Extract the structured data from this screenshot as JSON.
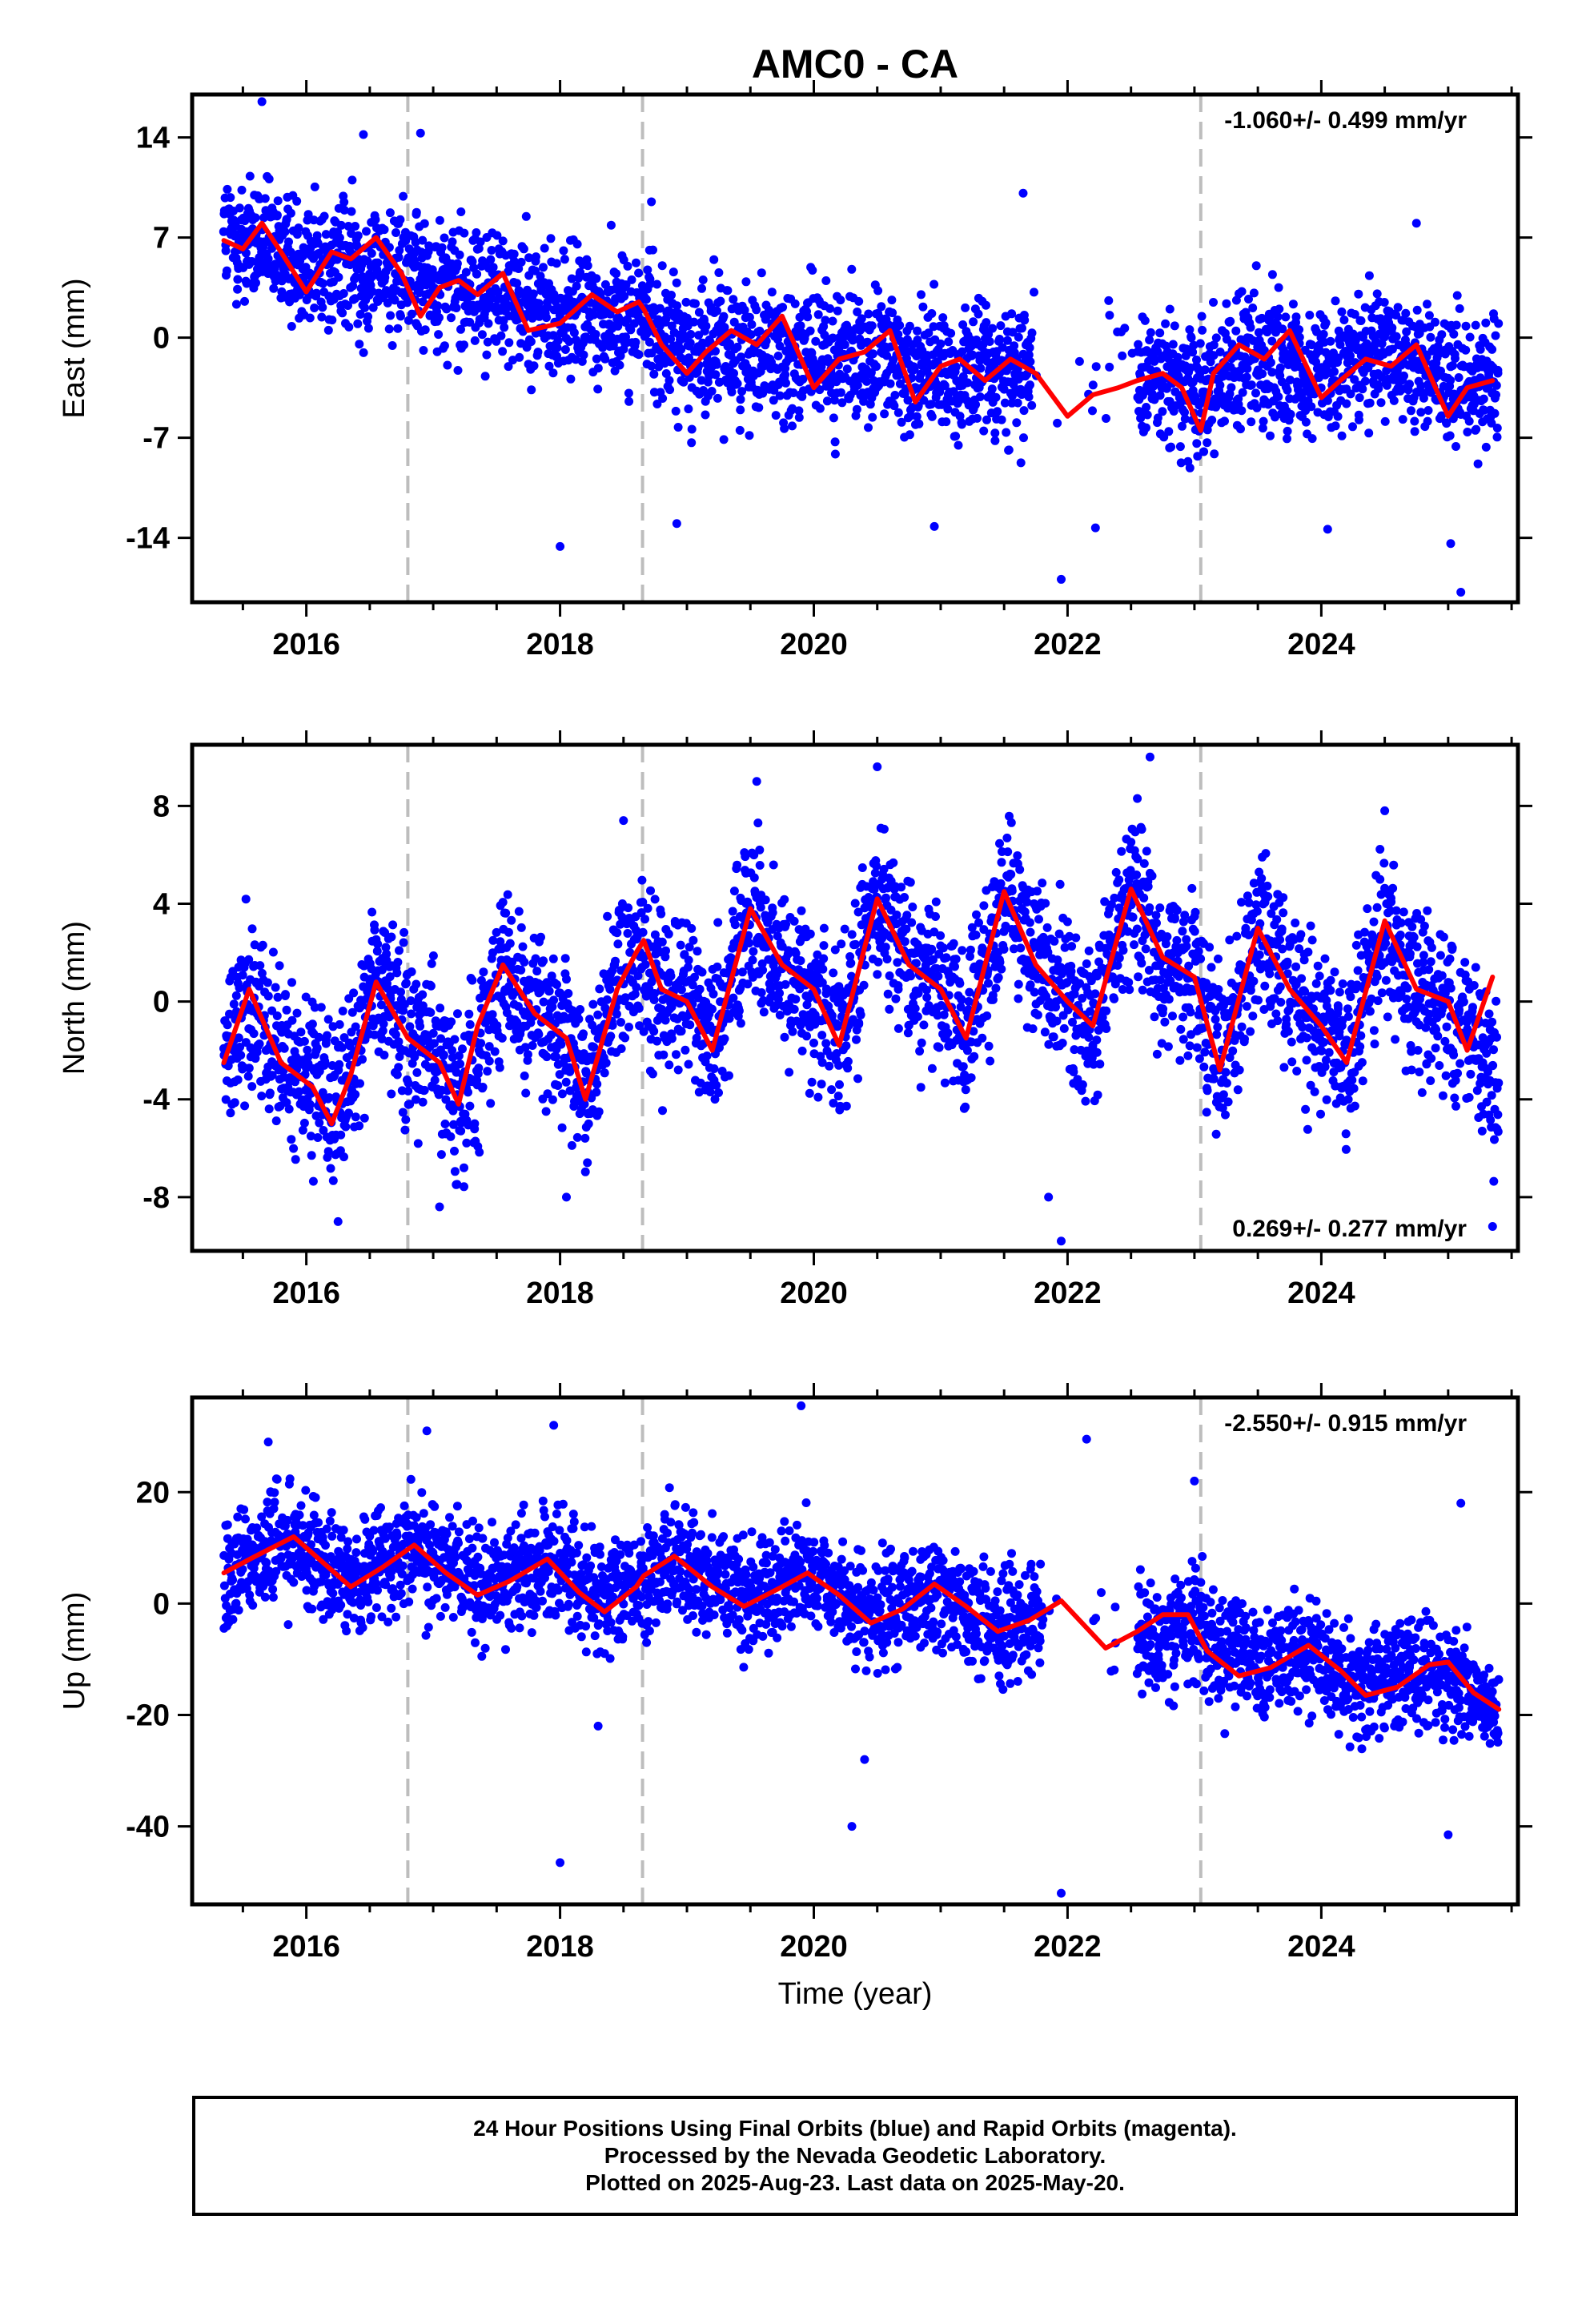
{
  "title": "AMC0 - CA",
  "colors": {
    "points": "#0000ff",
    "fit": "#ff0000",
    "events": "#bdbdbd",
    "axis": "#000000"
  },
  "footer": {
    "line1": "24 Hour Positions Using Final Orbits (blue) and Rapid Orbits (magenta).",
    "line2": "Processed by the Nevada Geodetic Laboratory.",
    "line3": "Plotted on 2025-Aug-23. Last data on 2025-May-20."
  },
  "chart_data": [
    {
      "type": "scatter",
      "name": "east",
      "title": "AMC0 - CA",
      "xlabel": "",
      "ylabel": "East (mm)",
      "xlim": [
        2015.1,
        2025.55
      ],
      "ylim": [
        -18.5,
        17
      ],
      "yticks": [
        14,
        7,
        0,
        -7,
        -14
      ],
      "ytick_labels": [
        "14",
        "7",
        "0",
        "-7",
        "-14"
      ],
      "xticks": [
        2016,
        2018,
        2020,
        2022,
        2024
      ],
      "xtick_labels": [
        "2016",
        "2018",
        "2020",
        "2022",
        "2024"
      ],
      "event_lines": [
        2016.8,
        2018.65,
        2023.05
      ],
      "rate_label": "-1.060+/- 0.499 mm/yr",
      "rate_position": "top-right",
      "fit": {
        "x": [
          2015.35,
          2015.5,
          2015.65,
          2015.8,
          2016.0,
          2016.2,
          2016.35,
          2016.55,
          2016.75,
          2016.9,
          2017.05,
          2017.2,
          2017.35,
          2017.55,
          2017.75,
          2018.0,
          2018.25,
          2018.45,
          2018.62,
          2018.66,
          2018.8,
          2019.0,
          2019.15,
          2019.35,
          2019.55,
          2019.75,
          2020.0,
          2020.2,
          2020.4,
          2020.6,
          2020.8,
          2021.0,
          2021.15,
          2021.35,
          2021.55,
          2021.75,
          2022.0,
          2022.2,
          2022.4,
          2022.55,
          2022.75,
          2022.9,
          2023.05,
          2023.15,
          2023.35,
          2023.55,
          2023.75,
          2024.0,
          2024.15,
          2024.35,
          2024.55,
          2024.75,
          2025.0,
          2025.15,
          2025.35
        ],
        "y": [
          6.8,
          6.2,
          8.0,
          6.0,
          3.2,
          6.0,
          5.5,
          7.0,
          4.5,
          1.5,
          3.5,
          4.0,
          3.0,
          4.5,
          0.5,
          1.0,
          3.0,
          1.8,
          2.5,
          2.0,
          -0.5,
          -2.5,
          -1.0,
          0.5,
          -0.5,
          1.5,
          -3.5,
          -1.5,
          -1.0,
          0.5,
          -4.5,
          -2.0,
          -1.5,
          -3.0,
          -1.5,
          -2.5,
          -5.5,
          -4.0,
          -3.5,
          -3.0,
          -2.5,
          -3.5,
          -6.5,
          -2.5,
          -0.5,
          -1.5,
          0.5,
          -4.2,
          -3.0,
          -1.5,
          -2.0,
          -0.5,
          -5.5,
          -3.5,
          -3.0
        ]
      },
      "scatter": {
        "trend": {
          "x": [
            2015.35,
            2016.0,
            2016.8,
            2017.5,
            2018.0,
            2018.65,
            2019.0,
            2019.5,
            2020.0,
            2020.5,
            2021.0,
            2021.5,
            2022.0,
            2022.5,
            2023.0,
            2023.05,
            2023.5,
            2024.0,
            2024.5,
            2025.0,
            2025.4
          ],
          "y": [
            7.0,
            5.5,
            4.5,
            3.0,
            1.5,
            1.5,
            -1.0,
            -0.5,
            -1.5,
            -1.5,
            -2.5,
            -2.0,
            -3.0,
            -2.5,
            -3.5,
            -3.0,
            -1.5,
            -2.0,
            -1.5,
            -2.5,
            -3.0
          ]
        },
        "spread": 3.2,
        "gaps": [
          [
            2021.72,
            2022.55
          ]
        ],
        "outliers": [
          [
            2015.65,
            16.5
          ],
          [
            2016.45,
            14.2
          ],
          [
            2016.9,
            14.3
          ],
          [
            2018.0,
            -14.6
          ],
          [
            2018.72,
            9.5
          ],
          [
            2018.92,
            -13.0
          ],
          [
            2020.95,
            -13.2
          ],
          [
            2021.65,
            10.1
          ],
          [
            2021.95,
            -16.9
          ],
          [
            2022.22,
            -13.3
          ],
          [
            2024.75,
            8.0
          ],
          [
            2024.05,
            -13.4
          ],
          [
            2025.02,
            -14.4
          ],
          [
            2025.1,
            -17.8
          ]
        ]
      }
    },
    {
      "type": "scatter",
      "name": "north",
      "xlabel": "",
      "ylabel": "North (mm)",
      "xlim": [
        2015.1,
        2025.55
      ],
      "ylim": [
        -10.2,
        10.5
      ],
      "yticks": [
        8,
        4,
        0,
        -4,
        -8
      ],
      "ytick_labels": [
        "8",
        "4",
        "0",
        "-4",
        "-8"
      ],
      "xticks": [
        2016,
        2018,
        2020,
        2022,
        2024
      ],
      "xtick_labels": [
        "2016",
        "2018",
        "2020",
        "2022",
        "2024"
      ],
      "event_lines": [
        2016.8,
        2018.65,
        2023.05
      ],
      "rate_label": "0.269+/- 0.277 mm/yr",
      "rate_position": "bottom-right",
      "fit": {
        "x": [
          2015.35,
          2015.55,
          2015.8,
          2016.05,
          2016.2,
          2016.35,
          2016.55,
          2016.8,
          2017.05,
          2017.2,
          2017.35,
          2017.55,
          2017.8,
          2018.05,
          2018.2,
          2018.45,
          2018.6,
          2018.66,
          2018.8,
          2019.0,
          2019.2,
          2019.5,
          2019.75,
          2020.0,
          2020.2,
          2020.5,
          2020.75,
          2021.0,
          2021.2,
          2021.5,
          2021.75,
          2022.0,
          2022.2,
          2022.5,
          2022.75,
          2023.0,
          2023.2,
          2023.5,
          2023.75,
          2024.0,
          2024.2,
          2024.5,
          2024.75,
          2025.0,
          2025.15,
          2025.35
        ],
        "y": [
          -2.5,
          0.5,
          -2.5,
          -3.5,
          -5.0,
          -3.0,
          0.8,
          -1.5,
          -2.5,
          -4.2,
          -1.0,
          1.5,
          -0.5,
          -1.5,
          -4.0,
          0.5,
          2.0,
          2.5,
          0.5,
          0.0,
          -2.0,
          3.8,
          1.5,
          0.5,
          -1.8,
          4.2,
          1.5,
          0.5,
          -1.5,
          4.5,
          1.5,
          0.0,
          -1.0,
          4.6,
          1.8,
          1.0,
          -2.8,
          3.0,
          0.5,
          -1.0,
          -2.5,
          3.3,
          0.5,
          0.0,
          -2.0,
          1.0
        ]
      },
      "scatter": {
        "trend": {
          "x": [
            2015.35,
            2015.55,
            2015.8,
            2016.05,
            2016.25,
            2016.55,
            2016.8,
            2017.05,
            2017.25,
            2017.55,
            2017.8,
            2018.05,
            2018.2,
            2018.5,
            2018.8,
            2019.0,
            2019.2,
            2019.5,
            2019.75,
            2020.0,
            2020.2,
            2020.5,
            2020.75,
            2021.0,
            2021.2,
            2021.5,
            2021.75,
            2022.0,
            2022.2,
            2022.5,
            2022.75,
            2023.0,
            2023.2,
            2023.5,
            2023.75,
            2024.0,
            2024.2,
            2024.5,
            2024.75,
            2025.0,
            2025.2,
            2025.4
          ],
          "y": [
            -2.5,
            0.5,
            -2.5,
            -3.5,
            -4.5,
            0.8,
            -1.5,
            -2.5,
            -4.0,
            1.5,
            -0.5,
            -1.5,
            -3.5,
            2.0,
            0.5,
            0.0,
            -2.0,
            3.8,
            1.5,
            0.5,
            -1.8,
            4.2,
            1.5,
            0.5,
            -1.5,
            4.5,
            1.5,
            0.0,
            -1.0,
            4.6,
            1.8,
            1.0,
            -2.8,
            3.0,
            0.5,
            -1.0,
            -2.5,
            3.3,
            0.5,
            0.0,
            -2.0,
            -3.0
          ]
        },
        "spread": 2.3,
        "gaps": [],
        "outliers": [
          [
            2019.55,
            9.0
          ],
          [
            2020.5,
            9.6
          ],
          [
            2022.65,
            10.0
          ],
          [
            2022.55,
            8.3
          ],
          [
            2016.25,
            -9.0
          ],
          [
            2021.95,
            -9.8
          ],
          [
            2017.05,
            -8.4
          ],
          [
            2018.05,
            -8.0
          ],
          [
            2025.35,
            -9.2
          ],
          [
            2021.85,
            -8.0
          ],
          [
            2024.5,
            7.8
          ],
          [
            2018.5,
            7.4
          ]
        ]
      }
    },
    {
      "type": "scatter",
      "name": "up",
      "xlabel": "Time (year)",
      "ylabel": "Up (mm)",
      "xlim": [
        2015.1,
        2025.55
      ],
      "ylim": [
        -54,
        37
      ],
      "yticks": [
        20,
        0,
        -20,
        -40
      ],
      "ytick_labels": [
        "20",
        "0",
        "-20",
        "-40"
      ],
      "xticks": [
        2016,
        2018,
        2020,
        2022,
        2024
      ],
      "xtick_labels": [
        "2016",
        "2018",
        "2020",
        "2022",
        "2024"
      ],
      "event_lines": [
        2016.8,
        2018.65,
        2023.05
      ],
      "rate_label": "-2.550+/- 0.915 mm/yr",
      "rate_position": "top-right",
      "fit": {
        "x": [
          2015.35,
          2015.6,
          2015.9,
          2016.15,
          2016.35,
          2016.6,
          2016.85,
          2017.1,
          2017.35,
          2017.6,
          2017.9,
          2018.15,
          2018.35,
          2018.6,
          2018.66,
          2018.9,
          2019.2,
          2019.45,
          2019.75,
          2019.95,
          2020.2,
          2020.45,
          2020.7,
          2020.95,
          2021.2,
          2021.45,
          2021.7,
          2021.95,
          2022.3,
          2022.55,
          2022.75,
          2022.95,
          2023.1,
          2023.35,
          2023.6,
          2023.9,
          2024.15,
          2024.35,
          2024.6,
          2024.85,
          2025.0,
          2025.2,
          2025.4
        ],
        "y": [
          5.5,
          8.5,
          12.0,
          7.0,
          3.0,
          6.5,
          10.5,
          5.5,
          1.5,
          4.0,
          8.0,
          2.0,
          -1.5,
          3.0,
          5.0,
          8.5,
          3.0,
          -0.5,
          3.0,
          5.5,
          1.5,
          -3.5,
          -1.0,
          3.5,
          -0.5,
          -5.0,
          -3.0,
          0.5,
          -8.0,
          -5.0,
          -2.0,
          -2.0,
          -8.5,
          -13.0,
          -11.5,
          -7.5,
          -12.0,
          -16.5,
          -15.0,
          -11.0,
          -10.5,
          -16.0,
          -19.0
        ]
      },
      "scatter": {
        "trend": {
          "x": [
            2015.35,
            2015.9,
            2016.35,
            2016.85,
            2017.35,
            2017.9,
            2018.35,
            2018.9,
            2019.45,
            2019.95,
            2020.45,
            2020.95,
            2021.45,
            2021.95,
            2022.5,
            2023.0,
            2023.1,
            2023.6,
            2023.9,
            2024.35,
            2024.85,
            2025.2,
            2025.4
          ],
          "y": [
            6.0,
            11.0,
            4.0,
            10.0,
            3.0,
            8.0,
            1.0,
            7.0,
            1.0,
            5.0,
            -2.0,
            2.0,
            -4.0,
            -1.0,
            -6.0,
            -3.0,
            -8.0,
            -11.0,
            -8.0,
            -15.0,
            -11.0,
            -16.0,
            -20.0
          ]
        },
        "spread": 7.0,
        "gaps": [
          [
            2021.8,
            2022.55
          ]
        ],
        "outliers": [
          [
            2019.9,
            35.5
          ],
          [
            2017.95,
            32.0
          ],
          [
            2015.7,
            29.0
          ],
          [
            2016.95,
            31.0
          ],
          [
            2022.15,
            29.5
          ],
          [
            2023.0,
            22.0
          ],
          [
            2018.0,
            -46.5
          ],
          [
            2020.3,
            -40.0
          ],
          [
            2021.95,
            -52.0
          ],
          [
            2025.1,
            18.0
          ],
          [
            2025.0,
            -41.5
          ],
          [
            2018.3,
            -22.0
          ],
          [
            2020.4,
            -28.0
          ]
        ]
      }
    }
  ]
}
